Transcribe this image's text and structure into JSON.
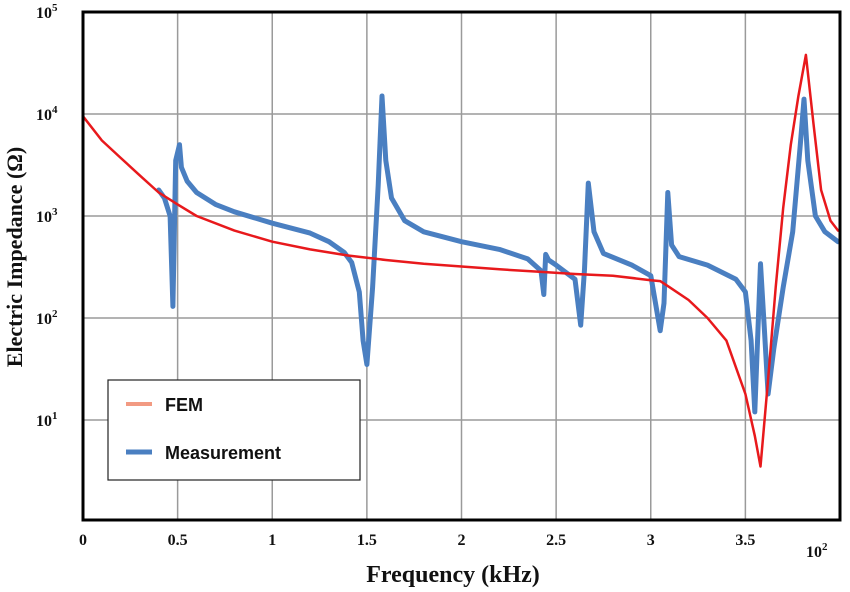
{
  "chart_data": {
    "type": "line",
    "xlabel": "Frequency (kHz)",
    "ylabel": "Electric Impedance (Ω)",
    "x_multiplier_label": "10",
    "x_multiplier_exp": "2",
    "xlim": [
      0,
      4.0
    ],
    "ylim": [
      3,
      100000
    ],
    "y_scale": "log",
    "grid": true,
    "legend_position": "bottom-left",
    "x_ticks": [
      {
        "value": 0,
        "label": "0"
      },
      {
        "value": 0.5,
        "label": "0.5"
      },
      {
        "value": 1,
        "label": "1"
      },
      {
        "value": 1.5,
        "label": "1.5"
      },
      {
        "value": 2,
        "label": "2"
      },
      {
        "value": 2.5,
        "label": "2.5"
      },
      {
        "value": 3,
        "label": "3"
      },
      {
        "value": 3.5,
        "label": "3.5"
      }
    ],
    "y_ticks": [
      {
        "value": 10,
        "base": "10",
        "exp": "1"
      },
      {
        "value": 100,
        "base": "10",
        "exp": "2"
      },
      {
        "value": 1000,
        "base": "10",
        "exp": "3"
      },
      {
        "value": 10000,
        "base": "10",
        "exp": "4"
      },
      {
        "value": 100000,
        "base": "10",
        "exp": "5"
      }
    ],
    "series": [
      {
        "name": "FEM",
        "color": "#e8191c",
        "legend_color": "#f29a82",
        "x": [
          0,
          0.1,
          0.2,
          0.3,
          0.4,
          0.5,
          0.6,
          0.8,
          1.0,
          1.2,
          1.4,
          1.6,
          1.8,
          2.0,
          2.2,
          2.4,
          2.6,
          2.8,
          3.0,
          3.05,
          3.1,
          3.2,
          3.3,
          3.4,
          3.5,
          3.55,
          3.58,
          3.62,
          3.66,
          3.7,
          3.74,
          3.78,
          3.82,
          3.86,
          3.9,
          3.95,
          3.99
        ],
        "y": [
          9500,
          5500,
          3700,
          2500,
          1700,
          1300,
          1000,
          720,
          560,
          470,
          410,
          370,
          340,
          320,
          300,
          285,
          270,
          260,
          235,
          230,
          200,
          150,
          100,
          60,
          18,
          7,
          3.5,
          25,
          200,
          1200,
          5000,
          15000,
          38000,
          8000,
          1800,
          900,
          720
        ]
      },
      {
        "name": "Measurement",
        "color": "#4a7fc1",
        "legend_color": "#4a7fc1",
        "x": [
          0.4,
          0.43,
          0.46,
          0.475,
          0.49,
          0.51,
          0.52,
          0.55,
          0.6,
          0.7,
          0.8,
          1.0,
          1.2,
          1.3,
          1.38,
          1.42,
          1.46,
          1.48,
          1.5,
          1.53,
          1.56,
          1.58,
          1.6,
          1.63,
          1.7,
          1.8,
          2.0,
          2.2,
          2.35,
          2.42,
          2.435,
          2.445,
          2.46,
          2.5,
          2.6,
          2.63,
          2.65,
          2.67,
          2.7,
          2.75,
          2.9,
          3.0,
          3.05,
          3.07,
          3.09,
          3.11,
          3.15,
          3.3,
          3.45,
          3.5,
          3.53,
          3.55,
          3.58,
          3.6,
          3.62,
          3.65,
          3.7,
          3.75,
          3.79,
          3.81,
          3.83,
          3.87,
          3.92,
          3.99
        ],
        "y": [
          1800,
          1500,
          1000,
          130,
          3500,
          5000,
          3000,
          2200,
          1700,
          1300,
          1100,
          850,
          680,
          560,
          440,
          350,
          180,
          60,
          35,
          200,
          2000,
          15000,
          3500,
          1500,
          900,
          700,
          560,
          470,
          380,
          290,
          170,
          420,
          370,
          330,
          240,
          85,
          300,
          2100,
          700,
          430,
          330,
          260,
          75,
          140,
          1700,
          520,
          400,
          330,
          240,
          180,
          60,
          12,
          340,
          80,
          18,
          50,
          200,
          700,
          5000,
          14000,
          3500,
          1000,
          700,
          560
        ]
      }
    ]
  }
}
